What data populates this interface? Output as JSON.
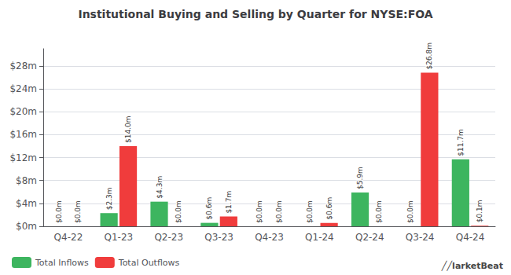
{
  "chart_data": {
    "type": "bar",
    "title": "Institutional Buying and Selling by Quarter for NYSE:FOA",
    "categories": [
      "Q4-22",
      "Q1-23",
      "Q2-23",
      "Q3-23",
      "Q4-23",
      "Q1-24",
      "Q2-24",
      "Q3-24",
      "Q4-24"
    ],
    "series": [
      {
        "name": "Total Inflows",
        "color": "#3db55f",
        "values": [
          0.0,
          2.3,
          4.3,
          0.6,
          0.0,
          0.0,
          5.9,
          0.0,
          11.7
        ],
        "value_labels": [
          "$0.0m",
          "$2.3m",
          "$4.3m",
          "$0.6m",
          "$0.0m",
          "$0.0m",
          "$5.9m",
          "$0.0m",
          "$11.7m"
        ]
      },
      {
        "name": "Total Outflows",
        "color": "#f03c3c",
        "values": [
          0.0,
          14.0,
          0.0,
          1.7,
          0.0,
          0.6,
          0.0,
          26.8,
          0.1
        ],
        "value_labels": [
          "$0.0m",
          "$14.0m",
          "$0.0m",
          "$1.7m",
          "$0.0m",
          "$0.6m",
          "$0.0m",
          "$26.8m",
          "$0.1m"
        ]
      }
    ],
    "ylim": [
      0,
      31
    ],
    "yticks": [
      {
        "value": 0,
        "label": "$0m"
      },
      {
        "value": 4,
        "label": "$4m"
      },
      {
        "value": 8,
        "label": "$8m"
      },
      {
        "value": 12,
        "label": "$12m"
      },
      {
        "value": 16,
        "label": "$16m"
      },
      {
        "value": 20,
        "label": "$20m"
      },
      {
        "value": 24,
        "label": "$24m"
      },
      {
        "value": 28,
        "label": "$28m"
      }
    ],
    "grid": true,
    "legend": "lower left",
    "data_labels": true,
    "annotation": "╱╱larketBeat"
  }
}
